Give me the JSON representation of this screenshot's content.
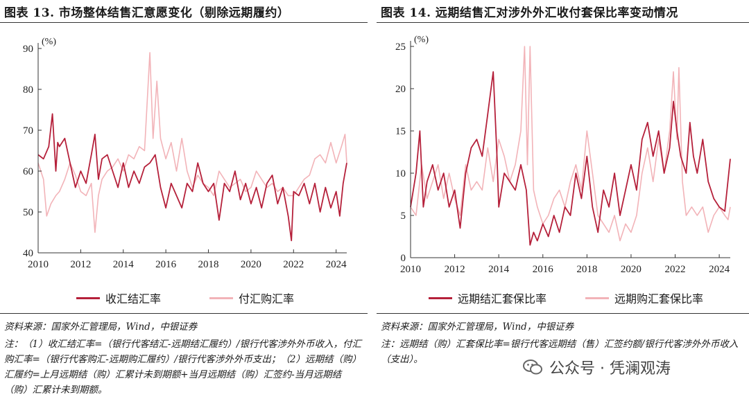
{
  "left": {
    "title": "图表 13. 市场整体结售汇意愿变化（剔除远期履约）",
    "unit": "(%)",
    "legend": [
      "收汇结汇率",
      "付汇购汇率"
    ],
    "source": "资料来源：国家外汇管理局，Wind，中银证券",
    "note": "注：（1）收汇结汇率=（银行代客结汇-远期结汇履约）/银行代客涉外外币收入，付汇购汇率=（银行代客购汇-远期购汇履约）/银行代客涉外外币支出；（2）远期结（购）汇履约=上月远期结（购）汇累计未到期额+当月远期结（购）汇签约-当月远期结（购）汇累计未到期额。"
  },
  "right": {
    "title": "图表 14. 远期结售汇对涉外外汇收付套保比率变动情况",
    "unit": "(%)",
    "legend": [
      "远期结汇套保比率",
      "远期购汇套保比率"
    ],
    "source": "资料来源：国家外汇管理局，Wind，中银证券",
    "note": "注：远期结（购）汇套保比率=银行代客远期结（售）汇签约额/银行代客涉外外币收入（支出）。"
  },
  "watermark": "公众号 · 凭澜观涛",
  "colors": {
    "dark_series": "#B5203A",
    "light_series": "#F2B3B8",
    "axis": "#333333"
  },
  "chart_data": [
    {
      "type": "line",
      "xlabel": "",
      "ylabel": "(%)",
      "ylim": [
        40,
        90
      ],
      "xlim": [
        2010,
        2024.5
      ],
      "xticks": [
        "2010",
        "2012",
        "2014",
        "2016",
        "2018",
        "2020",
        "2022",
        "2024"
      ],
      "yticks": [
        "40",
        "50",
        "60",
        "70",
        "80",
        "90"
      ],
      "grid": false,
      "legend_position": "bottom",
      "series": [
        {
          "name": "收汇结汇率",
          "points": [
            [
              2010.0,
              64
            ],
            [
              2010.25,
              63
            ],
            [
              2010.5,
              66
            ],
            [
              2010.67,
              74
            ],
            [
              2010.83,
              60
            ],
            [
              2010.92,
              67
            ],
            [
              2011.0,
              66
            ],
            [
              2011.25,
              68
            ],
            [
              2011.5,
              62
            ],
            [
              2011.75,
              56
            ],
            [
              2012.0,
              60
            ],
            [
              2012.25,
              57
            ],
            [
              2012.5,
              64
            ],
            [
              2012.67,
              69
            ],
            [
              2012.83,
              58
            ],
            [
              2013.0,
              63
            ],
            [
              2013.25,
              64
            ],
            [
              2013.5,
              60
            ],
            [
              2013.75,
              56
            ],
            [
              2014.0,
              62
            ],
            [
              2014.25,
              56
            ],
            [
              2014.5,
              60
            ],
            [
              2014.75,
              57
            ],
            [
              2015.0,
              61
            ],
            [
              2015.25,
              62
            ],
            [
              2015.5,
              64
            ],
            [
              2015.75,
              56
            ],
            [
              2016.0,
              51
            ],
            [
              2016.25,
              57
            ],
            [
              2016.5,
              54
            ],
            [
              2016.75,
              51
            ],
            [
              2017.0,
              57
            ],
            [
              2017.25,
              55
            ],
            [
              2017.5,
              62
            ],
            [
              2017.75,
              57
            ],
            [
              2018.0,
              55
            ],
            [
              2018.25,
              57
            ],
            [
              2018.5,
              48
            ],
            [
              2018.75,
              57
            ],
            [
              2019.0,
              55
            ],
            [
              2019.25,
              60
            ],
            [
              2019.5,
              53
            ],
            [
              2019.75,
              57
            ],
            [
              2020.0,
              52
            ],
            [
              2020.25,
              56
            ],
            [
              2020.5,
              51
            ],
            [
              2020.75,
              57
            ],
            [
              2021.0,
              59
            ],
            [
              2021.25,
              52
            ],
            [
              2021.5,
              56
            ],
            [
              2021.75,
              49
            ],
            [
              2021.9,
              43
            ],
            [
              2022.0,
              55
            ],
            [
              2022.25,
              54
            ],
            [
              2022.5,
              57
            ],
            [
              2022.75,
              52
            ],
            [
              2023.0,
              57
            ],
            [
              2023.25,
              50
            ],
            [
              2023.5,
              56
            ],
            [
              2023.75,
              51
            ],
            [
              2024.0,
              55
            ],
            [
              2024.17,
              49
            ],
            [
              2024.33,
              57
            ],
            [
              2024.5,
              62
            ]
          ]
        },
        {
          "name": "付汇购汇率",
          "points": [
            [
              2010.0,
              62
            ],
            [
              2010.25,
              58
            ],
            [
              2010.4,
              49
            ],
            [
              2010.6,
              52
            ],
            [
              2010.83,
              54
            ],
            [
              2011.0,
              55
            ],
            [
              2011.25,
              58
            ],
            [
              2011.5,
              62
            ],
            [
              2011.75,
              59
            ],
            [
              2012.0,
              55
            ],
            [
              2012.25,
              54
            ],
            [
              2012.5,
              57
            ],
            [
              2012.67,
              45
            ],
            [
              2012.83,
              54
            ],
            [
              2013.0,
              58
            ],
            [
              2013.25,
              60
            ],
            [
              2013.5,
              61
            ],
            [
              2013.75,
              63
            ],
            [
              2014.0,
              60
            ],
            [
              2014.25,
              64
            ],
            [
              2014.5,
              63
            ],
            [
              2014.75,
              66
            ],
            [
              2015.0,
              65
            ],
            [
              2015.25,
              89
            ],
            [
              2015.4,
              68
            ],
            [
              2015.58,
              82
            ],
            [
              2015.75,
              68
            ],
            [
              2016.0,
              63
            ],
            [
              2016.25,
              67
            ],
            [
              2016.5,
              60
            ],
            [
              2016.75,
              68
            ],
            [
              2017.0,
              60
            ],
            [
              2017.25,
              56
            ],
            [
              2017.5,
              59
            ],
            [
              2017.75,
              57
            ],
            [
              2018.0,
              56
            ],
            [
              2018.25,
              54
            ],
            [
              2018.5,
              60
            ],
            [
              2018.75,
              58
            ],
            [
              2019.0,
              56
            ],
            [
              2019.25,
              57
            ],
            [
              2019.5,
              58
            ],
            [
              2019.75,
              55
            ],
            [
              2020.0,
              56
            ],
            [
              2020.25,
              60
            ],
            [
              2020.5,
              58
            ],
            [
              2020.75,
              56
            ],
            [
              2021.0,
              57
            ],
            [
              2021.25,
              55
            ],
            [
              2021.5,
              56
            ],
            [
              2021.75,
              54
            ],
            [
              2022.0,
              54
            ],
            [
              2022.25,
              56
            ],
            [
              2022.5,
              58
            ],
            [
              2022.75,
              59
            ],
            [
              2023.0,
              63
            ],
            [
              2023.25,
              64
            ],
            [
              2023.5,
              62
            ],
            [
              2023.75,
              67
            ],
            [
              2024.0,
              62
            ],
            [
              2024.25,
              66
            ],
            [
              2024.42,
              69
            ],
            [
              2024.5,
              62
            ]
          ]
        }
      ]
    },
    {
      "type": "line",
      "xlabel": "",
      "ylabel": "(%)",
      "ylim": [
        0,
        25
      ],
      "xlim": [
        2010,
        2024.5
      ],
      "xticks": [
        "2010",
        "2012",
        "2014",
        "2016",
        "2018",
        "2020",
        "2022",
        "2024"
      ],
      "yticks": [
        "0",
        "5",
        "10",
        "15",
        "20",
        "25"
      ],
      "grid": false,
      "legend_position": "bottom",
      "series": [
        {
          "name": "远期结汇套保比率",
          "points": [
            [
              2010.0,
              6
            ],
            [
              2010.25,
              10
            ],
            [
              2010.42,
              15
            ],
            [
              2010.58,
              6
            ],
            [
              2010.75,
              9
            ],
            [
              2011.0,
              11
            ],
            [
              2011.25,
              8
            ],
            [
              2011.5,
              10
            ],
            [
              2011.75,
              6
            ],
            [
              2012.0,
              8
            ],
            [
              2012.25,
              3.5
            ],
            [
              2012.5,
              10
            ],
            [
              2012.75,
              13
            ],
            [
              2013.0,
              14
            ],
            [
              2013.25,
              12
            ],
            [
              2013.5,
              17
            ],
            [
              2013.75,
              22
            ],
            [
              2013.92,
              12
            ],
            [
              2014.0,
              6
            ],
            [
              2014.25,
              10
            ],
            [
              2014.5,
              9
            ],
            [
              2014.75,
              8
            ],
            [
              2015.0,
              11
            ],
            [
              2015.25,
              8
            ],
            [
              2015.42,
              1.5
            ],
            [
              2015.58,
              3
            ],
            [
              2015.75,
              2
            ],
            [
              2016.0,
              4
            ],
            [
              2016.25,
              2.5
            ],
            [
              2016.5,
              5
            ],
            [
              2016.75,
              3
            ],
            [
              2017.0,
              6
            ],
            [
              2017.25,
              5
            ],
            [
              2017.5,
              10
            ],
            [
              2017.75,
              7
            ],
            [
              2018.0,
              12
            ],
            [
              2018.25,
              6
            ],
            [
              2018.5,
              3
            ],
            [
              2018.75,
              8
            ],
            [
              2019.0,
              6
            ],
            [
              2019.25,
              10
            ],
            [
              2019.5,
              5
            ],
            [
              2019.75,
              8
            ],
            [
              2020.0,
              11
            ],
            [
              2020.25,
              8
            ],
            [
              2020.5,
              14
            ],
            [
              2020.75,
              16
            ],
            [
              2021.0,
              12
            ],
            [
              2021.25,
              15
            ],
            [
              2021.5,
              10
            ],
            [
              2021.75,
              13
            ],
            [
              2021.92,
              18.5
            ],
            [
              2022.08,
              15
            ],
            [
              2022.25,
              12
            ],
            [
              2022.5,
              10
            ],
            [
              2022.67,
              16
            ],
            [
              2022.83,
              12
            ],
            [
              2023.0,
              10
            ],
            [
              2023.25,
              14
            ],
            [
              2023.5,
              9
            ],
            [
              2023.75,
              7
            ],
            [
              2024.0,
              6
            ],
            [
              2024.25,
              5.5
            ],
            [
              2024.5,
              11.7
            ]
          ]
        },
        {
          "name": "远期购汇套保比率",
          "points": [
            [
              2010.0,
              6
            ],
            [
              2010.25,
              5
            ],
            [
              2010.5,
              11
            ],
            [
              2010.75,
              7
            ],
            [
              2011.0,
              9
            ],
            [
              2011.25,
              11
            ],
            [
              2011.5,
              7
            ],
            [
              2011.75,
              10
            ],
            [
              2012.0,
              7
            ],
            [
              2012.25,
              5
            ],
            [
              2012.5,
              11
            ],
            [
              2012.75,
              8
            ],
            [
              2013.0,
              9
            ],
            [
              2013.25,
              8
            ],
            [
              2013.5,
              13
            ],
            [
              2013.75,
              9
            ],
            [
              2014.0,
              14
            ],
            [
              2014.25,
              12
            ],
            [
              2014.5,
              9
            ],
            [
              2014.75,
              11
            ],
            [
              2015.0,
              15
            ],
            [
              2015.17,
              25
            ],
            [
              2015.3,
              11
            ],
            [
              2015.42,
              25
            ],
            [
              2015.58,
              8
            ],
            [
              2015.75,
              6
            ],
            [
              2016.0,
              4
            ],
            [
              2016.25,
              5
            ],
            [
              2016.5,
              7
            ],
            [
              2016.75,
              8
            ],
            [
              2017.0,
              6
            ],
            [
              2017.25,
              9
            ],
            [
              2017.5,
              11
            ],
            [
              2017.75,
              8
            ],
            [
              2018.0,
              15
            ],
            [
              2018.25,
              10
            ],
            [
              2018.5,
              5
            ],
            [
              2018.75,
              4
            ],
            [
              2019.0,
              3
            ],
            [
              2019.25,
              5
            ],
            [
              2019.5,
              2
            ],
            [
              2019.75,
              4
            ],
            [
              2020.0,
              3
            ],
            [
              2020.25,
              5
            ],
            [
              2020.5,
              10
            ],
            [
              2020.75,
              13
            ],
            [
              2021.0,
              9
            ],
            [
              2021.25,
              14
            ],
            [
              2021.5,
              10
            ],
            [
              2021.75,
              15
            ],
            [
              2021.92,
              22
            ],
            [
              2022.08,
              14
            ],
            [
              2022.17,
              22.5
            ],
            [
              2022.33,
              9
            ],
            [
              2022.5,
              5
            ],
            [
              2022.75,
              6
            ],
            [
              2023.0,
              5
            ],
            [
              2023.25,
              6
            ],
            [
              2023.5,
              3
            ],
            [
              2023.75,
              5
            ],
            [
              2024.0,
              6
            ],
            [
              2024.25,
              5
            ],
            [
              2024.4,
              4.5
            ],
            [
              2024.5,
              6
            ]
          ]
        }
      ]
    }
  ]
}
